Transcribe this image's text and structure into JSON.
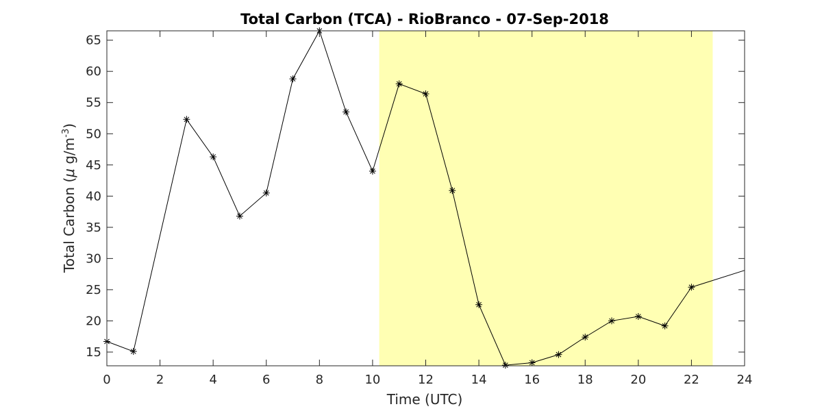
{
  "chart_data": {
    "type": "line",
    "title": "Total Carbon (TCA) - RioBranco - 07-Sep-2018",
    "xlabel": "Time (UTC)",
    "ylabel": {
      "prefix": "Total Carbon (",
      "mu": "μ",
      "unit": " g/m",
      "superscript": "-3",
      "suffix": ")"
    },
    "xlim": [
      0,
      24
    ],
    "ylim": [
      12.8,
      66.5
    ],
    "xticks": [
      0,
      2,
      4,
      6,
      8,
      10,
      12,
      14,
      16,
      18,
      20,
      22,
      24
    ],
    "yticks": [
      15,
      20,
      25,
      30,
      35,
      40,
      45,
      50,
      55,
      60,
      65
    ],
    "highlight_band": {
      "x_start": 10.25,
      "x_end": 22.8,
      "color": "#ffffb3"
    },
    "series": [
      {
        "x": [
          0,
          1,
          3,
          4,
          5,
          6,
          7,
          8,
          9,
          10,
          11,
          12,
          13,
          14,
          15,
          16,
          17,
          18,
          19,
          20,
          21,
          22
        ],
        "y": [
          16.7,
          15.1,
          52.3,
          46.3,
          36.8,
          40.5,
          58.8,
          66.5,
          53.5,
          44.0,
          58.0,
          56.4,
          40.9,
          22.6,
          12.9,
          13.3,
          14.6,
          17.4,
          20.0,
          20.7,
          19.2,
          25.4
        ],
        "marker": "asterisk",
        "color": "#000000"
      }
    ],
    "trailing_line": {
      "x": [
        22,
        24
      ],
      "y": [
        25.4,
        28.1
      ]
    },
    "grid": false,
    "box": true
  }
}
